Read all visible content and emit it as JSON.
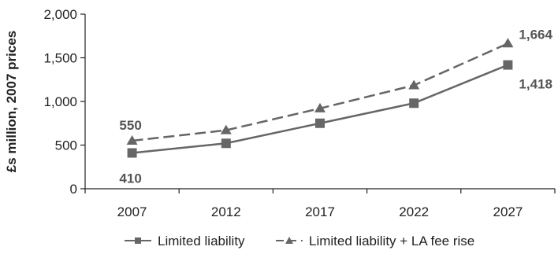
{
  "chart_data": {
    "type": "line",
    "title": "",
    "xlabel": "",
    "ylabel": "£s million, 2007 prices",
    "categories": [
      "2007",
      "2012",
      "2017",
      "2022",
      "2027"
    ],
    "ylim": [
      0,
      2000
    ],
    "yticks": [
      "0",
      "500",
      "1,000",
      "1,500",
      "2,000"
    ],
    "grid": false,
    "legend_position": "bottom",
    "series": [
      {
        "name": "Limited liability",
        "values": [
          410,
          520,
          750,
          980,
          1418
        ],
        "color": "#666666",
        "line_style": "solid",
        "marker": "square"
      },
      {
        "name": "Limited liability + LA fee rise",
        "values": [
          550,
          670,
          920,
          1185,
          1664
        ],
        "color": "#666666",
        "line_style": "dashed",
        "marker": "triangle"
      }
    ],
    "annotations": [
      {
        "series": 1,
        "index": 0,
        "text": "550"
      },
      {
        "series": 0,
        "index": 0,
        "text": "410"
      },
      {
        "series": 1,
        "index": 4,
        "text": "1,664"
      },
      {
        "series": 0,
        "index": 4,
        "text": "1,418"
      }
    ]
  }
}
